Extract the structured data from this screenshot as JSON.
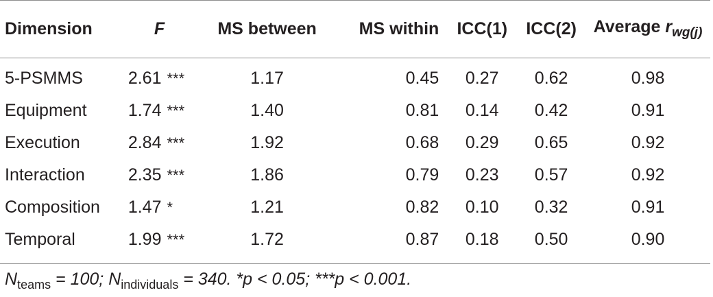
{
  "table": {
    "headers": {
      "dimension": "Dimension",
      "f": "F",
      "ms_between": "MS between",
      "ms_within": "MS within",
      "icc1": "ICC(1)",
      "icc2": "ICC(2)",
      "average_prefix": "Average",
      "average_r": "r",
      "average_sub": "wg(j)"
    },
    "rows": [
      {
        "dimension": "5-PSMMS",
        "f": "2.61",
        "sig": "***",
        "ms_between": "1.17",
        "ms_within": "0.45",
        "icc1": "0.27",
        "icc2": "0.62",
        "rwg": "0.98"
      },
      {
        "dimension": "Equipment",
        "f": "1.74",
        "sig": "***",
        "ms_between": "1.40",
        "ms_within": "0.81",
        "icc1": "0.14",
        "icc2": "0.42",
        "rwg": "0.91"
      },
      {
        "dimension": "Execution",
        "f": "2.84",
        "sig": "***",
        "ms_between": "1.92",
        "ms_within": "0.68",
        "icc1": "0.29",
        "icc2": "0.65",
        "rwg": "0.92"
      },
      {
        "dimension": "Interaction",
        "f": "2.35",
        "sig": "***",
        "ms_between": "1.86",
        "ms_within": "0.79",
        "icc1": "0.23",
        "icc2": "0.57",
        "rwg": "0.92"
      },
      {
        "dimension": "Composition",
        "f": "1.47",
        "sig": "*",
        "ms_between": "1.21",
        "ms_within": "0.82",
        "icc1": "0.10",
        "icc2": "0.32",
        "rwg": "0.91"
      },
      {
        "dimension": "Temporal",
        "f": "1.99",
        "sig": "***",
        "ms_between": "1.72",
        "ms_within": "0.87",
        "icc1": "0.18",
        "icc2": "0.50",
        "rwg": "0.90"
      }
    ]
  },
  "note": {
    "n_teams_label": "N",
    "n_teams_sub": "teams",
    "n_teams_value": " = 100; ",
    "n_ind_label": "N",
    "n_ind_sub": "individuals",
    "n_ind_value": " = 340. *p < 0.05; ***p < 0.001."
  }
}
